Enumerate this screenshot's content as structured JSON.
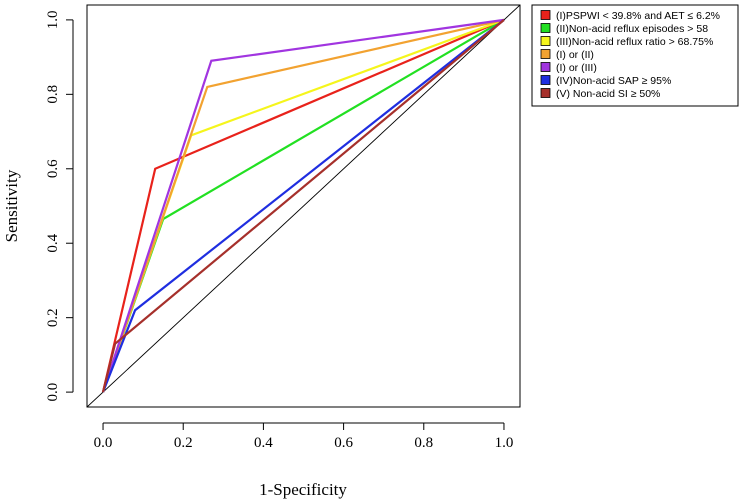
{
  "chart_data": {
    "type": "line",
    "title": "",
    "xlabel": "1-Specificity",
    "ylabel": "Sensitivity",
    "xlim": [
      -0.04,
      1.04
    ],
    "ylim": [
      -0.04,
      1.04
    ],
    "xticks": [
      0.0,
      0.2,
      0.4,
      0.6,
      0.8,
      1.0
    ],
    "xtick_labels": [
      "0.0",
      "0.2",
      "0.4",
      "0.6",
      "0.8",
      "1.0"
    ],
    "yticks": [
      0.0,
      0.2,
      0.4,
      0.6,
      0.8,
      1.0
    ],
    "ytick_labels": [
      "0.0",
      "0.2",
      "0.4",
      "0.6",
      "0.8",
      "1.0"
    ],
    "grid": false,
    "legend_position": "outside-right-top",
    "reference_line": {
      "x": [
        -0.04,
        1.04
      ],
      "y": [
        -0.04,
        1.04
      ],
      "color": "#000000"
    },
    "series": [
      {
        "name": "(I)PSPWI < 39.8% and AET ≤ 6.2%",
        "color": "#e8221b",
        "x": [
          0.0,
          0.13,
          1.0
        ],
        "y": [
          0.0,
          0.6,
          1.0
        ]
      },
      {
        "name": "(II)Non-acid reflux episodes > 58",
        "color": "#22e022",
        "x": [
          0.0,
          0.15,
          1.0
        ],
        "y": [
          0.0,
          0.465,
          1.0
        ]
      },
      {
        "name": "(III)Non-acid reflux ratio > 68.75%",
        "color": "#f5f51c",
        "x": [
          0.0,
          0.22,
          1.0
        ],
        "y": [
          0.0,
          0.69,
          1.0
        ]
      },
      {
        "name": "(I) or (II)",
        "color": "#f2a230",
        "x": [
          0.0,
          0.26,
          1.0
        ],
        "y": [
          0.0,
          0.82,
          1.0
        ]
      },
      {
        "name": "(I) or (III)",
        "color": "#a135e0",
        "x": [
          0.0,
          0.27,
          1.0
        ],
        "y": [
          0.0,
          0.89,
          1.0
        ]
      },
      {
        "name": "(IV)Non-acid SAP ≥ 95%",
        "color": "#1f2ee0",
        "x": [
          0.0,
          0.08,
          1.0
        ],
        "y": [
          0.0,
          0.22,
          1.0
        ]
      },
      {
        "name": "(V) Non-acid SI ≥ 50%",
        "color": "#a6302b",
        "x": [
          0.0,
          0.03,
          1.0
        ],
        "y": [
          0.0,
          0.13,
          1.0
        ]
      }
    ]
  }
}
